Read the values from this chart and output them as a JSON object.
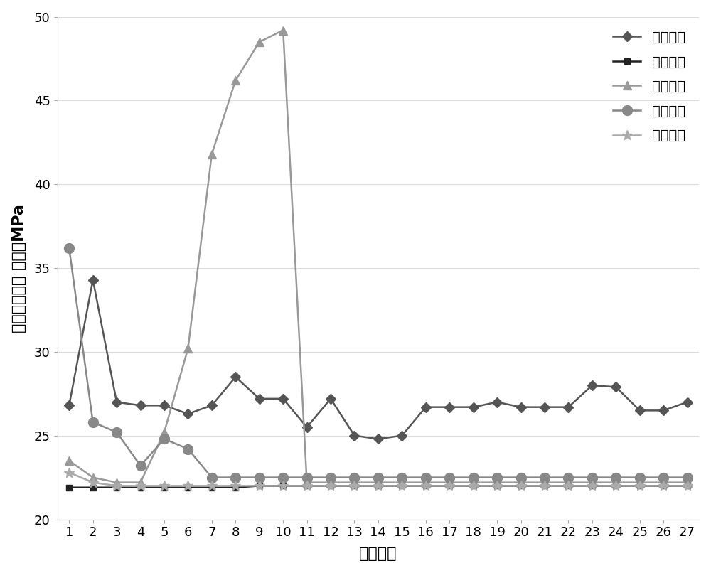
{
  "title": "",
  "xlabel": "模拟数量",
  "ylabel": "最大等效应力 单位：MPa",
  "xlim": [
    0.5,
    27.5
  ],
  "ylim": [
    20,
    50
  ],
  "yticks": [
    20,
    25,
    30,
    35,
    40,
    45,
    50
  ],
  "xtick_labels": [
    "1",
    "2",
    "3",
    "4",
    "5",
    "6",
    "7",
    "8",
    "9",
    "10",
    "11",
    "12",
    "13",
    "14",
    "15",
    "16",
    "17",
    "18",
    "19",
    "20",
    "21",
    "22",
    "23",
    "24",
    "25",
    "26",
    "27"
  ],
  "background_color": "#ffffff",
  "series": [
    {
      "name": "长度变化",
      "x": [
        1,
        2,
        3,
        4,
        5,
        6,
        7,
        8,
        9,
        10,
        11,
        12,
        13,
        14,
        15,
        16,
        17,
        18,
        19,
        20,
        21,
        22,
        23,
        24,
        25,
        26,
        27
      ],
      "y": [
        26.8,
        34.3,
        27.0,
        26.8,
        26.8,
        26.3,
        26.8,
        28.5,
        27.2,
        27.2,
        25.5,
        27.2,
        25.0,
        24.8,
        25.0,
        26.7,
        26.7,
        26.7,
        27.0,
        26.7,
        26.7,
        26.7,
        28.0,
        27.9,
        26.5,
        26.5,
        27.0
      ],
      "color": "#555555",
      "marker": "D",
      "markersize": 7,
      "linewidth": 1.8,
      "linestyle": "-"
    },
    {
      "name": "宽度变化",
      "x": [
        1,
        2,
        3,
        4,
        5,
        6,
        7,
        8,
        9,
        10,
        11,
        12,
        13,
        14,
        15,
        16,
        17,
        18,
        19,
        20,
        21,
        22,
        23,
        24,
        25,
        26,
        27
      ],
      "y": [
        21.9,
        21.9,
        21.9,
        21.9,
        21.9,
        21.9,
        21.9,
        21.9,
        22.0,
        22.0,
        22.0,
        22.0,
        22.0,
        22.0,
        22.0,
        22.0,
        22.0,
        22.0,
        22.0,
        22.0,
        22.0,
        22.0,
        22.0,
        22.0,
        22.0,
        22.0,
        22.0
      ],
      "color": "#222222",
      "marker": "s",
      "markersize": 6,
      "linewidth": 1.8,
      "linestyle": "-"
    },
    {
      "name": "深度变化",
      "x": [
        1,
        2,
        3,
        4,
        5,
        6,
        7,
        8,
        9,
        10,
        11,
        12,
        13,
        14,
        15,
        16,
        17,
        18,
        19,
        20,
        21,
        22,
        23,
        24,
        25,
        26,
        27
      ],
      "y": [
        23.5,
        22.5,
        22.2,
        22.2,
        25.2,
        30.2,
        41.8,
        46.2,
        48.5,
        49.2,
        22.2,
        22.2,
        22.2,
        22.2,
        22.2,
        22.2,
        22.2,
        22.2,
        22.2,
        22.2,
        22.2,
        22.2,
        22.2,
        22.2,
        22.2,
        22.2,
        22.2
      ],
      "color": "#999999",
      "marker": "^",
      "markersize": 8,
      "linewidth": 1.8,
      "linestyle": "-"
    },
    {
      "name": "横向分布",
      "x": [
        1,
        2,
        3,
        4,
        5,
        6,
        7,
        8,
        9,
        10,
        11,
        12,
        13,
        14,
        15,
        16,
        17,
        18,
        19,
        20,
        21,
        22,
        23,
        24,
        25,
        26,
        27
      ],
      "y": [
        36.2,
        25.8,
        25.2,
        23.2,
        24.8,
        24.2,
        22.5,
        22.5,
        22.5,
        22.5,
        22.5,
        22.5,
        22.5,
        22.5,
        22.5,
        22.5,
        22.5,
        22.5,
        22.5,
        22.5,
        22.5,
        22.5,
        22.5,
        22.5,
        22.5,
        22.5,
        22.5
      ],
      "color": "#888888",
      "marker": "o",
      "markersize": 10,
      "linewidth": 1.8,
      "linestyle": "-"
    },
    {
      "name": "纵向变化",
      "x": [
        1,
        2,
        3,
        4,
        5,
        6,
        7,
        8,
        9,
        10,
        11,
        12,
        13,
        14,
        15,
        16,
        17,
        18,
        19,
        20,
        21,
        22,
        23,
        24,
        25,
        26,
        27
      ],
      "y": [
        22.8,
        22.2,
        22.0,
        22.0,
        22.0,
        22.0,
        22.0,
        22.0,
        22.0,
        22.0,
        22.0,
        22.0,
        22.0,
        22.0,
        22.0,
        22.0,
        22.0,
        22.0,
        22.0,
        22.0,
        22.0,
        22.0,
        22.0,
        22.0,
        22.0,
        22.0,
        22.0
      ],
      "color": "#aaaaaa",
      "marker": "*",
      "markersize": 10,
      "linewidth": 1.8,
      "linestyle": "-"
    }
  ],
  "font_size": 14,
  "tick_font_size": 13,
  "label_font_size": 16
}
